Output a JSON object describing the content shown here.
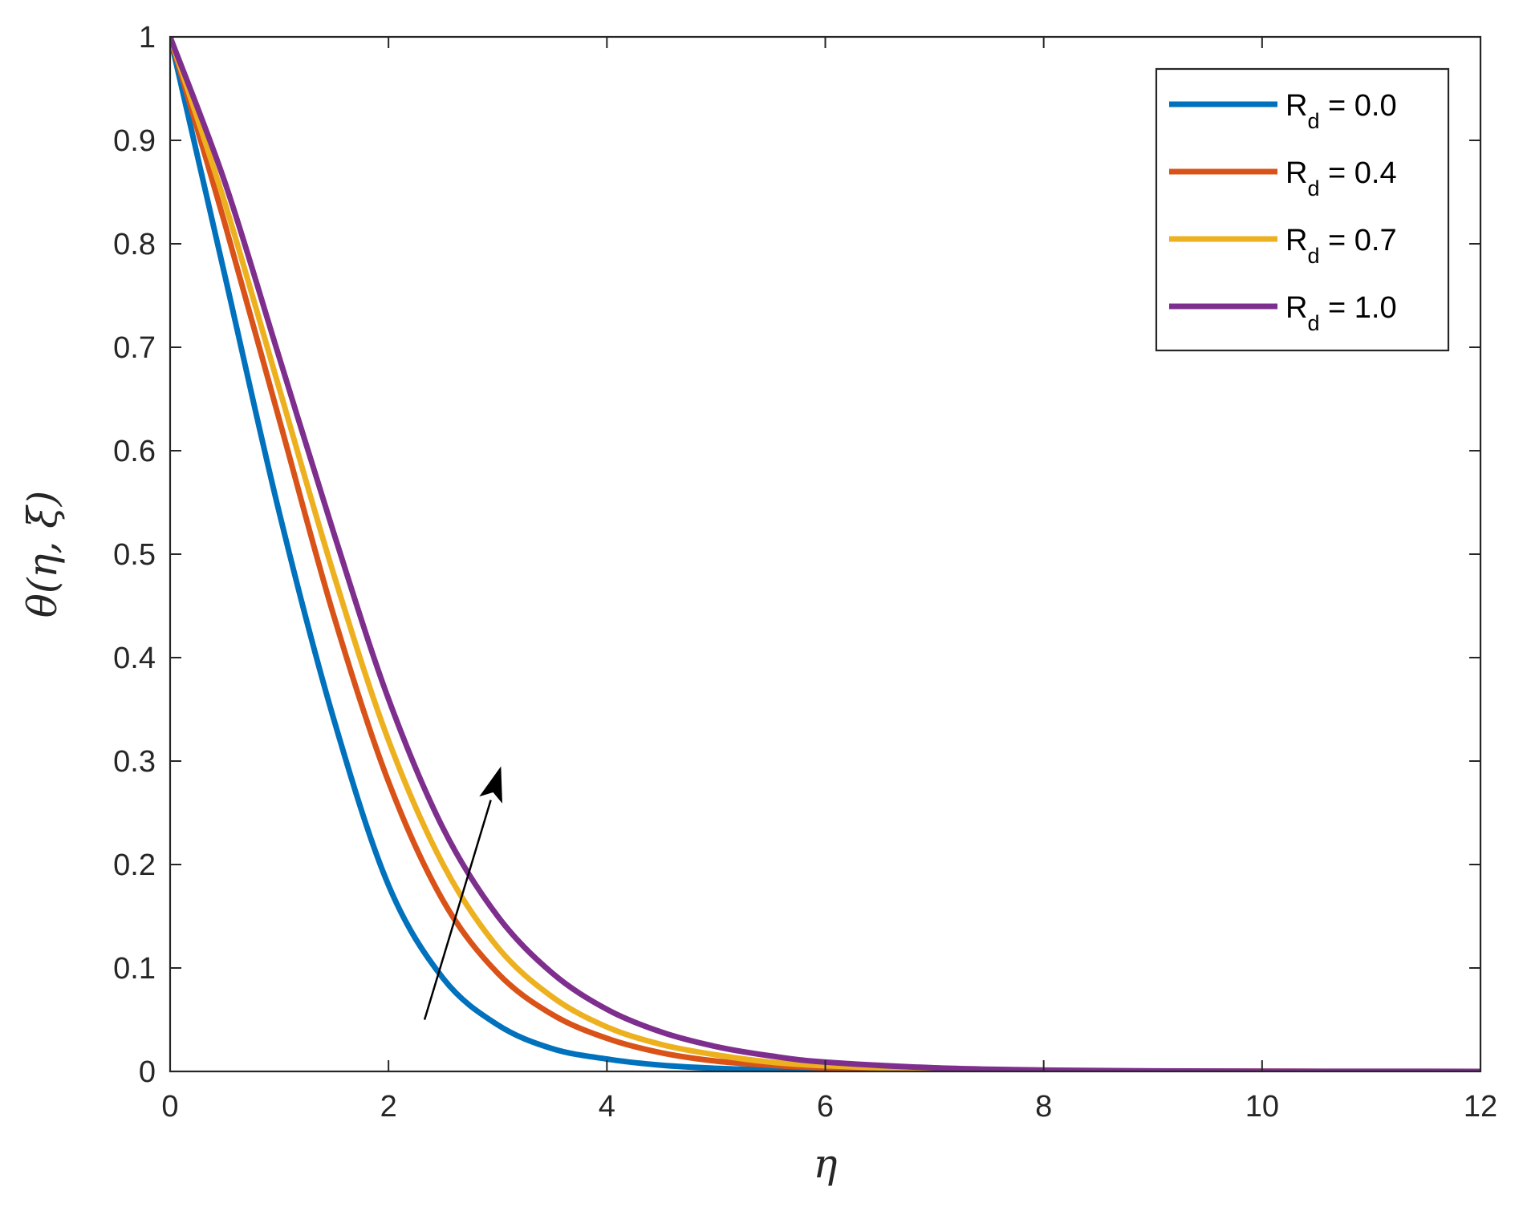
{
  "chart_data": {
    "type": "line",
    "xlabel": "η",
    "ylabel": "θ(η, ξ)",
    "xlim": [
      0,
      12
    ],
    "ylim": [
      0,
      1
    ],
    "xticks": [
      0,
      2,
      4,
      6,
      8,
      10,
      12
    ],
    "yticks": [
      0,
      0.1,
      0.2,
      0.3,
      0.4,
      0.5,
      0.6,
      0.7,
      0.8,
      0.9,
      1
    ],
    "xtick_labels": [
      "0",
      "2",
      "4",
      "6",
      "8",
      "10",
      "12"
    ],
    "ytick_labels": [
      "0",
      "0.1",
      "0.2",
      "0.3",
      "0.4",
      "0.5",
      "0.6",
      "0.7",
      "0.8",
      "0.9",
      "1"
    ],
    "grid": false,
    "legend_position": "top-right",
    "series": [
      {
        "label_main": "R",
        "label_sub": "d",
        "label_value": " = 0.0",
        "color": "#0072BD",
        "x": [
          0,
          0.5,
          1,
          1.5,
          2,
          2.5,
          3,
          3.5,
          4,
          4.5,
          5,
          5.5,
          6,
          7,
          8,
          9,
          10,
          11,
          12
        ],
        "y": [
          1,
          0.77,
          0.54,
          0.34,
          0.18,
          0.09,
          0.045,
          0.022,
          0.012,
          0.006,
          0.003,
          0.0015,
          0.001,
          0.0004,
          0.0002,
          0.0001,
          0,
          0,
          0
        ]
      },
      {
        "label_main": "R",
        "label_sub": "d",
        "label_value": " = 0.4",
        "color": "#D95319",
        "x": [
          0,
          0.5,
          1,
          1.5,
          2,
          2.5,
          3,
          3.5,
          4,
          4.5,
          5,
          5.5,
          6,
          7,
          8,
          9,
          10,
          11,
          12
        ],
        "y": [
          1,
          0.82,
          0.63,
          0.44,
          0.28,
          0.165,
          0.095,
          0.055,
          0.032,
          0.018,
          0.01,
          0.006,
          0.0035,
          0.0012,
          0.0005,
          0.0002,
          0.0001,
          0,
          0
        ]
      },
      {
        "label_main": "R",
        "label_sub": "d",
        "label_value": " = 0.7",
        "color": "#EDB120",
        "x": [
          0,
          0.5,
          1,
          1.5,
          2,
          2.5,
          3,
          3.5,
          4,
          4.5,
          5,
          5.5,
          6,
          7,
          8,
          9,
          10,
          11,
          12
        ],
        "y": [
          1,
          0.84,
          0.66,
          0.48,
          0.32,
          0.2,
          0.12,
          0.072,
          0.043,
          0.026,
          0.016,
          0.009,
          0.0055,
          0.002,
          0.0008,
          0.0003,
          0.0001,
          0,
          0
        ]
      },
      {
        "label_main": "R",
        "label_sub": "d",
        "label_value": " = 1.0",
        "color": "#7E2F8E",
        "x": [
          0,
          0.5,
          1,
          1.5,
          2,
          2.5,
          3,
          3.5,
          4,
          4.5,
          5,
          5.5,
          6,
          7,
          8,
          9,
          10,
          11,
          12
        ],
        "y": [
          1,
          0.86,
          0.69,
          0.52,
          0.36,
          0.235,
          0.15,
          0.095,
          0.06,
          0.038,
          0.024,
          0.015,
          0.009,
          0.0035,
          0.0013,
          0.0005,
          0.0002,
          0.0001,
          0
        ]
      }
    ],
    "annotations": [
      {
        "type": "arrow",
        "from": [
          2.33,
          0.05
        ],
        "to": [
          3.03,
          0.295
        ],
        "color": "#000000"
      }
    ]
  }
}
